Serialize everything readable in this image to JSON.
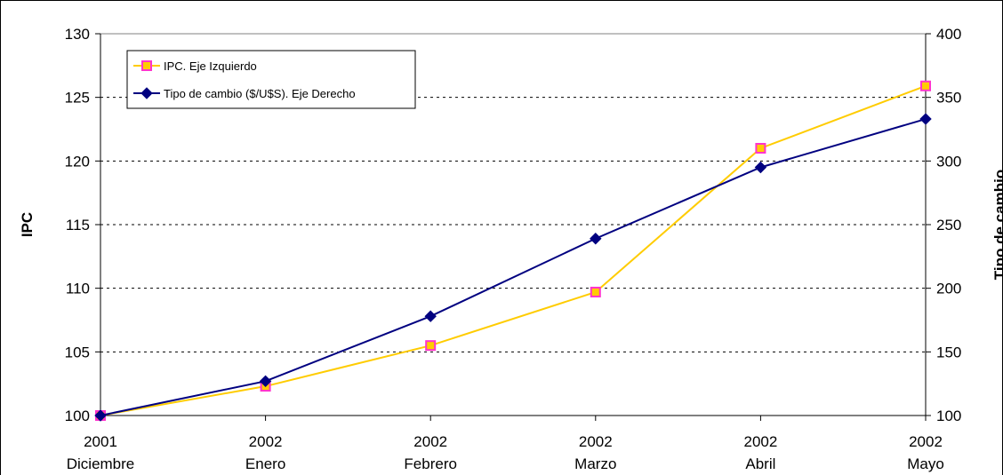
{
  "chart_data": {
    "type": "line",
    "categories": [
      {
        "year": "2001",
        "month": "Diciembre"
      },
      {
        "year": "2002",
        "month": "Enero"
      },
      {
        "year": "2002",
        "month": "Febrero"
      },
      {
        "year": "2002",
        "month": "Marzo"
      },
      {
        "year": "2002",
        "month": "Abril"
      },
      {
        "year": "2002",
        "month": "Mayo"
      }
    ],
    "y_left": {
      "label": "IPC",
      "ylim": [
        100,
        130
      ],
      "ticks": [
        "100",
        "105",
        "110",
        "115",
        "120",
        "125",
        "130"
      ],
      "grid": true
    },
    "y_right": {
      "label": "Tipo de cambio",
      "ylim": [
        100,
        400
      ],
      "ticks": [
        "100",
        "150",
        "200",
        "250",
        "300",
        "350",
        "400"
      ]
    },
    "series": [
      {
        "name": "IPC. Eje Izquierdo",
        "axis": "left",
        "color": "#FFCC00",
        "marker": "square",
        "marker_fill": "#FFCC00",
        "marker_edge": "#FF33CC",
        "values": [
          100.0,
          102.3,
          105.5,
          109.7,
          121.0,
          125.9
        ]
      },
      {
        "name": "Tipo de cambio ($/U$S). Eje Derecho",
        "axis": "right",
        "color": "#000080",
        "marker": "diamond",
        "values": [
          100,
          127,
          178,
          239,
          295,
          333
        ]
      }
    ],
    "legend_position": "top-left"
  }
}
